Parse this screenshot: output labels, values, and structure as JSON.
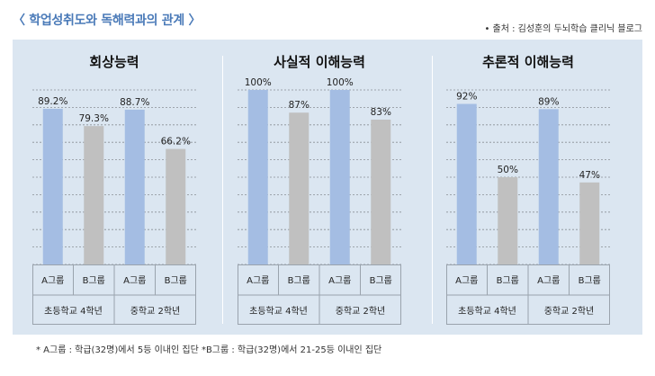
{
  "header": {
    "title": "〈 학업성취도와 독해력과의 관계 〉",
    "source": "• 출처 : 김성훈의 두뇌학습 클리닉 블로그"
  },
  "footnote": "*  A그룹 : 학급(32명)에서 5등 이내인 집단   *B그룹 : 학급(32명)에서 21-25등 이내인 집단",
  "colors": {
    "groupA": "#a4bde3",
    "groupB": "#c0c0c0",
    "panel": "#dbe6f1"
  },
  "chart_data": [
    {
      "type": "bar",
      "title": "회상능력",
      "categories": [
        "A그룹",
        "B그룹",
        "A그룹",
        "B그룹"
      ],
      "groups": [
        "초등학교 4학년",
        "중학교 2학년"
      ],
      "values": [
        89.2,
        79.3,
        88.7,
        66.2
      ],
      "labels": [
        "89.2%",
        "79.3%",
        "88.7%",
        "66.2%"
      ],
      "ylim": [
        0,
        100
      ]
    },
    {
      "type": "bar",
      "title": "사실적 이해능력",
      "categories": [
        "A그룹",
        "B그룹",
        "A그룹",
        "B그룹"
      ],
      "groups": [
        "초등학교 4학년",
        "중학교 2학년"
      ],
      "values": [
        100,
        87,
        100,
        83
      ],
      "labels": [
        "100%",
        "87%",
        "100%",
        "83%"
      ],
      "ylim": [
        0,
        100
      ]
    },
    {
      "type": "bar",
      "title": "추론적 이해능력",
      "categories": [
        "A그룹",
        "B그룹",
        "A그룹",
        "B그룹"
      ],
      "groups": [
        "초등학교 4학년",
        "중학교 2학년"
      ],
      "values": [
        92,
        50,
        89,
        47
      ],
      "labels": [
        "92%",
        "50%",
        "89%",
        "47%"
      ],
      "ylim": [
        0,
        100
      ]
    }
  ]
}
